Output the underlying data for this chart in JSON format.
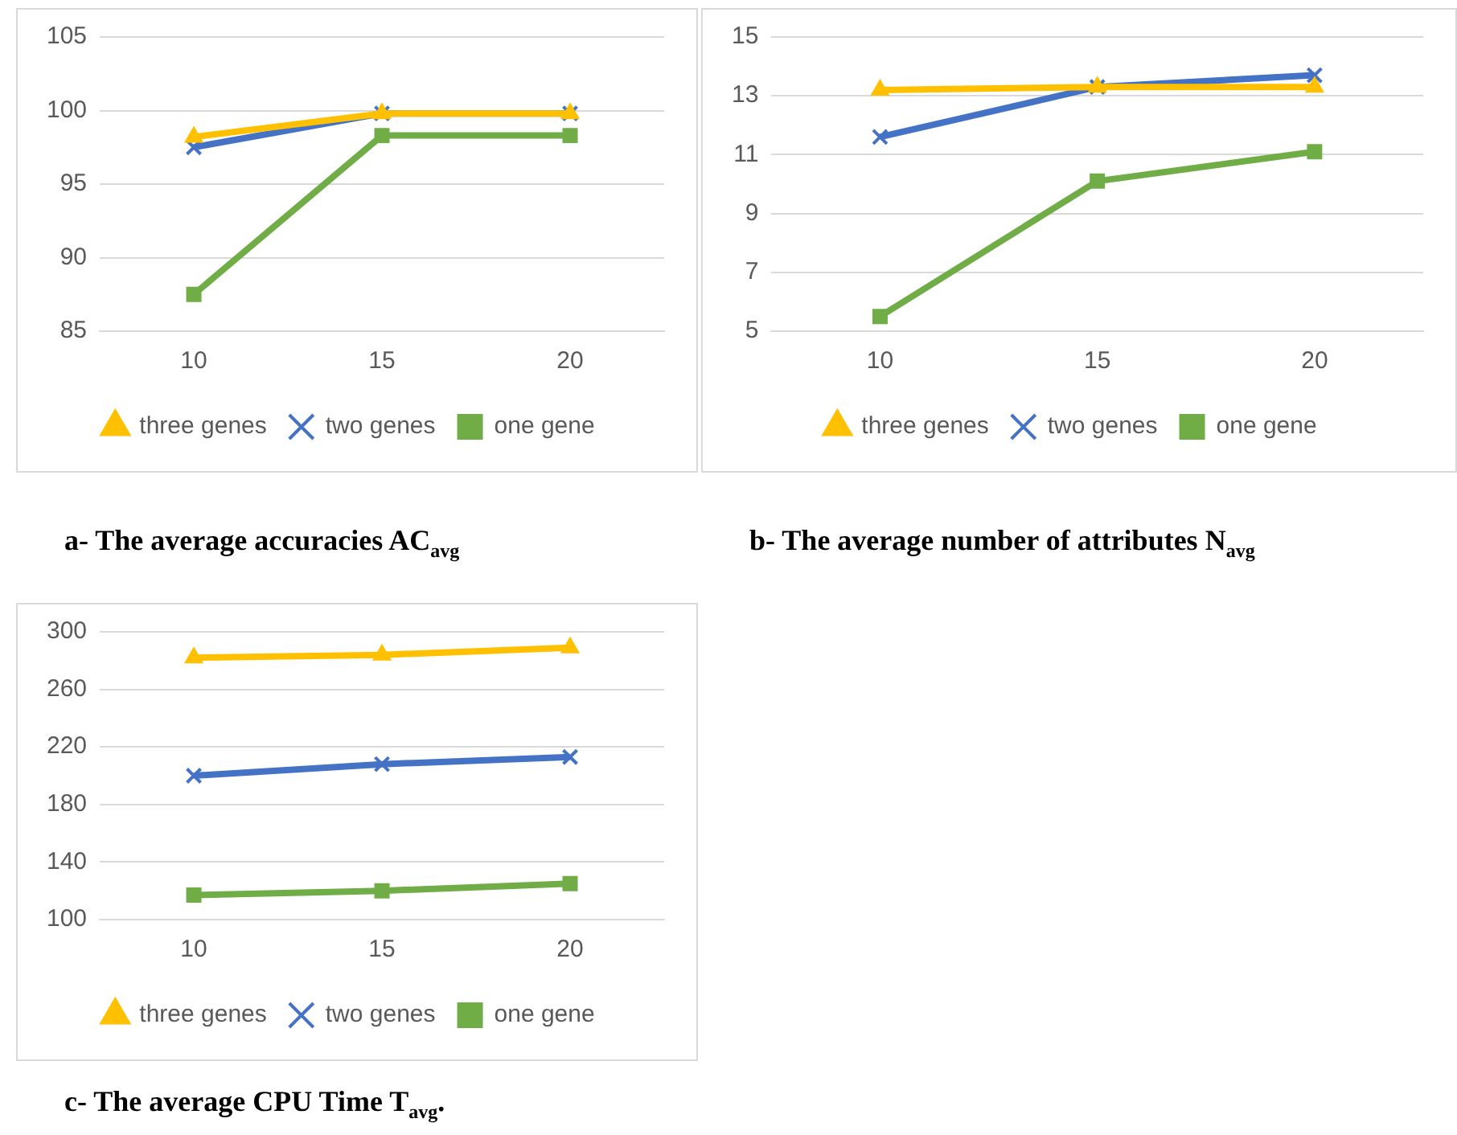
{
  "chart_data": [
    {
      "type": "line",
      "title": "a-    The average accuracies AC$_{avg}$",
      "categories": [
        "10",
        "15",
        "20"
      ],
      "ylim": [
        85,
        105
      ],
      "yticks": [
        85,
        90,
        95,
        100,
        105
      ],
      "grid": "y",
      "legend": "bottom",
      "series": [
        {
          "name": "one gene",
          "color": "#70ad47",
          "marker": "square",
          "values": [
            87.5,
            98.3,
            98.3
          ]
        },
        {
          "name": "two genes",
          "color": "#4472c4",
          "marker": "cross",
          "values": [
            97.5,
            99.8,
            99.8
          ]
        },
        {
          "name": "three genes",
          "color": "#ffc000",
          "marker": "triangle",
          "values": [
            98.2,
            99.8,
            99.8
          ]
        }
      ]
    },
    {
      "type": "line",
      "title": "b- The average number of attributes N$_{avg}$",
      "categories": [
        "10",
        "15",
        "20"
      ],
      "ylim": [
        5,
        15
      ],
      "yticks": [
        5,
        7,
        9,
        11,
        13,
        15
      ],
      "grid": "y",
      "legend": "bottom",
      "series": [
        {
          "name": "one gene",
          "color": "#70ad47",
          "marker": "square",
          "values": [
            5.5,
            10.1,
            11.1
          ]
        },
        {
          "name": "two genes",
          "color": "#4472c4",
          "marker": "cross",
          "values": [
            11.6,
            13.3,
            13.7
          ]
        },
        {
          "name": "three genes",
          "color": "#ffc000",
          "marker": "triangle",
          "values": [
            13.2,
            13.3,
            13.3
          ]
        }
      ]
    },
    {
      "type": "line",
      "title": "c-   The average CPU Time T$_{avg}$.",
      "categories": [
        "10",
        "15",
        "20"
      ],
      "ylim": [
        100,
        300
      ],
      "yticks": [
        100,
        140,
        180,
        220,
        260,
        300
      ],
      "grid": "y",
      "legend": "bottom",
      "series": [
        {
          "name": "one gene",
          "color": "#70ad47",
          "marker": "square",
          "values": [
            117,
            120,
            125
          ]
        },
        {
          "name": "two genes",
          "color": "#4472c4",
          "marker": "cross",
          "values": [
            200,
            208,
            213
          ]
        },
        {
          "name": "three genes",
          "color": "#ffc000",
          "marker": "triangle",
          "values": [
            282,
            284,
            289
          ]
        }
      ]
    }
  ]
}
